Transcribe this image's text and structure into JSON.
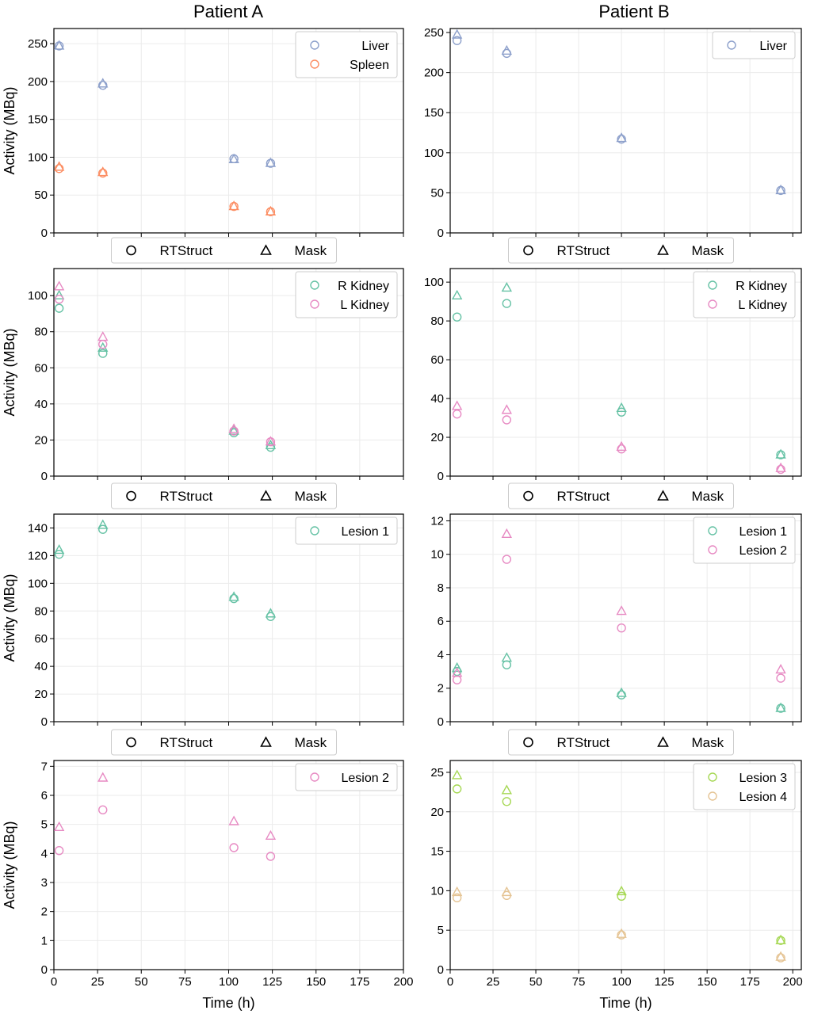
{
  "column_titles": [
    "Patient A",
    "Patient B"
  ],
  "shape_legend": {
    "circle_label": "RTStruct",
    "triangle_label": "Mask"
  },
  "colors": {
    "Liver": "#8da0cb",
    "Spleen": "#fc8d62",
    "R Kidney": "#66c2a5",
    "L Kidney": "#e78ac3",
    "Lesion 1": "#66c2a5",
    "Lesion 2": "#e78ac3",
    "Lesion 3": "#a6d854",
    "Lesion 4": "#e5c494"
  },
  "chart_data": [
    {
      "type": "scatter",
      "panel": "Patient A / Liver & Spleen",
      "title": "Patient A",
      "xlabel": "",
      "ylabel": "Activity (MBq)",
      "xlim": [
        0,
        200
      ],
      "ylim": [
        0,
        270
      ],
      "grid": true,
      "legend": "top-right",
      "xticks": [
        0,
        25,
        50,
        75,
        100,
        125,
        150,
        175,
        200
      ],
      "show_xticklabels": false,
      "yticks": [
        0,
        50,
        100,
        150,
        200,
        250
      ],
      "series": [
        {
          "name": "Liver",
          "x": [
            3,
            28,
            103,
            124
          ],
          "rtstruct": [
            247,
            195,
            98,
            92
          ],
          "mask": [
            247,
            197,
            97,
            92
          ]
        },
        {
          "name": "Spleen",
          "x": [
            3,
            28,
            103,
            124
          ],
          "rtstruct": [
            85,
            79,
            35,
            28
          ],
          "mask": [
            87,
            80,
            35,
            28
          ]
        }
      ]
    },
    {
      "type": "scatter",
      "panel": "Patient B / Liver",
      "title": "Patient B",
      "xlabel": "",
      "ylabel": "",
      "xlim": [
        0,
        205
      ],
      "ylim": [
        0,
        255
      ],
      "grid": true,
      "legend": "top-right",
      "xticks": [
        0,
        25,
        50,
        75,
        100,
        125,
        150,
        175,
        200
      ],
      "show_xticklabels": false,
      "yticks": [
        0,
        50,
        100,
        150,
        200,
        250
      ],
      "series": [
        {
          "name": "Liver",
          "x": [
            4,
            33,
            100,
            193
          ],
          "rtstruct": [
            240,
            224,
            117,
            53
          ],
          "mask": [
            247,
            227,
            118,
            53
          ]
        }
      ]
    },
    {
      "type": "scatter",
      "panel": "Patient A / Kidneys",
      "title": "",
      "xlabel": "",
      "ylabel": "Activity (MBq)",
      "xlim": [
        0,
        200
      ],
      "ylim": [
        0,
        115
      ],
      "grid": true,
      "legend": "top-right",
      "xticks": [
        0,
        25,
        50,
        75,
        100,
        125,
        150,
        175,
        200
      ],
      "show_xticklabels": false,
      "yticks": [
        0,
        20,
        40,
        60,
        80,
        100
      ],
      "series": [
        {
          "name": "R Kidney",
          "x": [
            3,
            28,
            103,
            124
          ],
          "rtstruct": [
            93,
            68,
            24,
            16
          ],
          "mask": [
            100,
            71,
            25,
            17
          ]
        },
        {
          "name": "L Kidney",
          "x": [
            3,
            28,
            103,
            124
          ],
          "rtstruct": [
            98,
            73,
            25,
            19
          ],
          "mask": [
            105,
            77,
            26,
            19
          ]
        }
      ]
    },
    {
      "type": "scatter",
      "panel": "Patient B / Kidneys",
      "title": "",
      "xlabel": "",
      "ylabel": "",
      "xlim": [
        0,
        205
      ],
      "ylim": [
        0,
        107
      ],
      "grid": true,
      "legend": "top-right",
      "xticks": [
        0,
        25,
        50,
        75,
        100,
        125,
        150,
        175,
        200
      ],
      "show_xticklabels": false,
      "yticks": [
        0,
        20,
        40,
        60,
        80,
        100
      ],
      "series": [
        {
          "name": "R Kidney",
          "x": [
            4,
            33,
            100,
            193
          ],
          "rtstruct": [
            82,
            89,
            33,
            11
          ],
          "mask": [
            93,
            97,
            35,
            11
          ]
        },
        {
          "name": "L Kidney",
          "x": [
            4,
            33,
            100,
            193
          ],
          "rtstruct": [
            32,
            29,
            14,
            3.5
          ],
          "mask": [
            36,
            34,
            15,
            4
          ]
        }
      ]
    },
    {
      "type": "scatter",
      "panel": "Patient A / Lesion 1",
      "title": "",
      "xlabel": "",
      "ylabel": "Activity (MBq)",
      "xlim": [
        0,
        200
      ],
      "ylim": [
        0,
        150
      ],
      "grid": true,
      "legend": "top-right",
      "xticks": [
        0,
        25,
        50,
        75,
        100,
        125,
        150,
        175,
        200
      ],
      "show_xticklabels": false,
      "yticks": [
        0,
        20,
        40,
        60,
        80,
        100,
        120,
        140
      ],
      "series": [
        {
          "name": "Lesion 1",
          "x": [
            3,
            28,
            103,
            124
          ],
          "rtstruct": [
            121,
            139,
            89,
            76
          ],
          "mask": [
            124,
            142,
            90,
            78
          ]
        }
      ]
    },
    {
      "type": "scatter",
      "panel": "Patient B / Lesions 1-2",
      "title": "",
      "xlabel": "",
      "ylabel": "",
      "xlim": [
        0,
        205
      ],
      "ylim": [
        0,
        12.4
      ],
      "grid": true,
      "legend": "top-right",
      "xticks": [
        0,
        25,
        50,
        75,
        100,
        125,
        150,
        175,
        200
      ],
      "show_xticklabels": false,
      "yticks": [
        0,
        2,
        4,
        6,
        8,
        10,
        12
      ],
      "series": [
        {
          "name": "Lesion 1",
          "x": [
            4,
            33,
            100,
            193
          ],
          "rtstruct": [
            3.0,
            3.4,
            1.6,
            0.8
          ],
          "mask": [
            3.2,
            3.8,
            1.7,
            0.8
          ]
        },
        {
          "name": "Lesion 2",
          "x": [
            4,
            33,
            100,
            193
          ],
          "rtstruct": [
            2.5,
            9.7,
            5.6,
            2.6
          ],
          "mask": [
            2.9,
            11.2,
            6.6,
            3.1
          ]
        }
      ]
    },
    {
      "type": "scatter",
      "panel": "Patient A / Lesion 2",
      "title": "",
      "xlabel": "Time (h)",
      "ylabel": "Activity (MBq)",
      "xlim": [
        0,
        200
      ],
      "ylim": [
        0,
        7.2
      ],
      "grid": true,
      "legend": "top-right",
      "xticks": [
        0,
        25,
        50,
        75,
        100,
        125,
        150,
        175,
        200
      ],
      "show_xticklabels": true,
      "yticks": [
        0,
        1,
        2,
        3,
        4,
        5,
        6,
        7
      ],
      "series": [
        {
          "name": "Lesion 2",
          "x": [
            3,
            28,
            103,
            124
          ],
          "rtstruct": [
            4.1,
            5.5,
            4.2,
            3.9
          ],
          "mask": [
            4.9,
            6.6,
            5.1,
            4.6
          ]
        }
      ]
    },
    {
      "type": "scatter",
      "panel": "Patient B / Lesions 3-4",
      "title": "",
      "xlabel": "Time (h)",
      "ylabel": "",
      "xlim": [
        0,
        205
      ],
      "ylim": [
        0,
        26.5
      ],
      "grid": true,
      "legend": "top-right",
      "xticks": [
        0,
        25,
        50,
        75,
        100,
        125,
        150,
        175,
        200
      ],
      "show_xticklabels": true,
      "yticks": [
        0,
        5,
        10,
        15,
        20,
        25
      ],
      "series": [
        {
          "name": "Lesion 3",
          "x": [
            4,
            33,
            100,
            193
          ],
          "rtstruct": [
            22.9,
            21.3,
            9.3,
            3.7
          ],
          "mask": [
            24.6,
            22.7,
            9.9,
            3.7
          ]
        },
        {
          "name": "Lesion 4",
          "x": [
            4,
            33,
            100,
            193
          ],
          "rtstruct": [
            9.1,
            9.4,
            4.4,
            1.5
          ],
          "mask": [
            9.8,
            9.8,
            4.5,
            1.6
          ]
        }
      ]
    }
  ]
}
